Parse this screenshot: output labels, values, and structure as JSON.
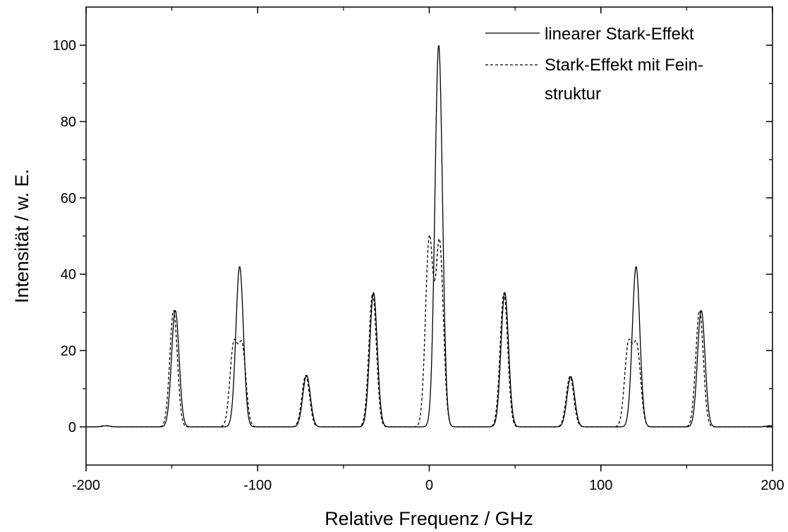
{
  "chart_data": {
    "type": "line",
    "title": "",
    "xlabel": "Relative Frequenz / GHz",
    "ylabel": "Intensität / w. E.",
    "xlim": [
      -200,
      200
    ],
    "ylim": [
      -10,
      110
    ],
    "xticks": [
      -200,
      -100,
      0,
      100,
      200
    ],
    "xtick_labels": [
      "-200",
      "-100",
      "0",
      "100",
      "200"
    ],
    "yticks": [
      0,
      20,
      40,
      60,
      80,
      100
    ],
    "ytick_labels": [
      "0",
      "20",
      "40",
      "60",
      "80",
      "100"
    ],
    "grid": false,
    "legend_position": "top-right",
    "color": "#000000",
    "series": [
      {
        "name": "linearer Stark-Effekt",
        "style": "solid",
        "peak_width_ghz": 2.2,
        "peaks": [
          {
            "x": -188,
            "y": 0.3
          },
          {
            "x": -148,
            "y": 30.5
          },
          {
            "x": -110.5,
            "y": 42
          },
          {
            "x": -71.5,
            "y": 13.5
          },
          {
            "x": -32.5,
            "y": 35.2
          },
          {
            "x": 5.5,
            "y": 100
          },
          {
            "x": 44,
            "y": 35.2
          },
          {
            "x": 82.5,
            "y": 13.2
          },
          {
            "x": 120.5,
            "y": 42
          },
          {
            "x": 158.5,
            "y": 30.5
          },
          {
            "x": 199,
            "y": 0.3
          }
        ]
      },
      {
        "name": "Stark-Effekt mit Fein-struktur",
        "legend_lines": [
          "Stark-Effekt mit Fein-",
          "struktur"
        ],
        "style": "dashed",
        "peak_width_ghz": 2.2,
        "peaks": [
          {
            "x": -189,
            "y": 0.3
          },
          {
            "x": -149,
            "y": 30.5
          },
          {
            "x": -114,
            "y": 21
          },
          {
            "x": -109,
            "y": 20.5
          },
          {
            "x": -72,
            "y": 13.5
          },
          {
            "x": -33,
            "y": 35
          },
          {
            "x": 0,
            "y": 49
          },
          {
            "x": 6,
            "y": 48
          },
          {
            "x": 43.5,
            "y": 35
          },
          {
            "x": 82,
            "y": 13.2
          },
          {
            "x": 116,
            "y": 21
          },
          {
            "x": 121,
            "y": 20.5
          },
          {
            "x": 157.5,
            "y": 30.5
          },
          {
            "x": 198,
            "y": 0.3
          }
        ]
      }
    ]
  }
}
